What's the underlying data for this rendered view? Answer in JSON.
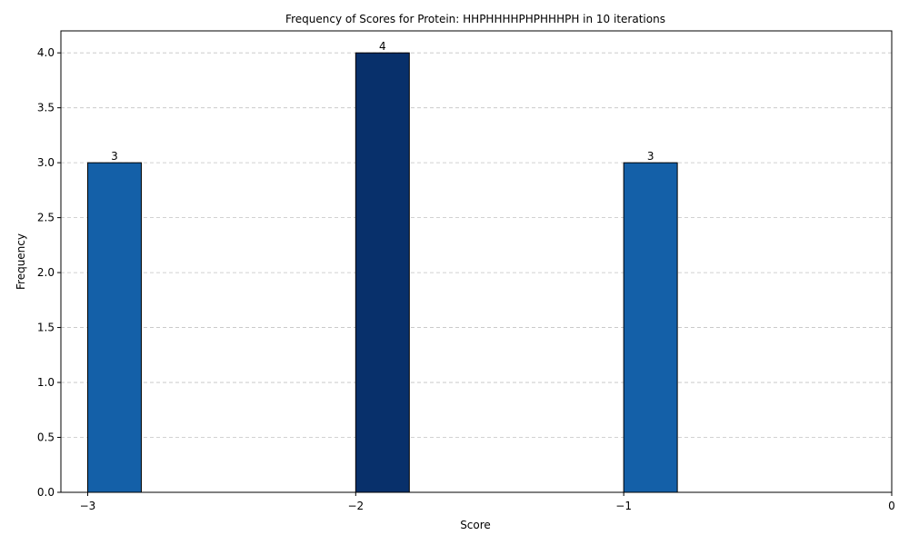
{
  "chart_data": {
    "type": "bar",
    "title": "Frequency of Scores for Protein: HHPHHHHPHPHHHPH in 10 iterations",
    "xlabel": "Score",
    "ylabel": "Frequency",
    "xlim": [
      -3.1,
      0
    ],
    "ylim": [
      0,
      4.2
    ],
    "bar_width": 0.2,
    "bars": [
      {
        "score": -3,
        "frequency": 3,
        "label": "3",
        "color": "#1460a8"
      },
      {
        "score": -2,
        "frequency": 4,
        "label": "4",
        "color": "#08306b"
      },
      {
        "score": -1,
        "frequency": 3,
        "label": "3",
        "color": "#1460a8"
      }
    ],
    "x_ticks": [
      {
        "value": -3,
        "label": "−3"
      },
      {
        "value": -2,
        "label": "−2"
      },
      {
        "value": -1,
        "label": "−1"
      },
      {
        "value": 0,
        "label": "0"
      }
    ],
    "y_ticks": [
      {
        "value": 0,
        "label": "0.0"
      },
      {
        "value": 0.5,
        "label": "0.5"
      },
      {
        "value": 1,
        "label": "1.0"
      },
      {
        "value": 1.5,
        "label": "1.5"
      },
      {
        "value": 2,
        "label": "2.0"
      },
      {
        "value": 2.5,
        "label": "2.5"
      },
      {
        "value": 3,
        "label": "3.0"
      },
      {
        "value": 3.5,
        "label": "3.5"
      },
      {
        "value": 4,
        "label": "4.0"
      }
    ],
    "grid": "y-dashed",
    "edge_color": "#000000"
  }
}
